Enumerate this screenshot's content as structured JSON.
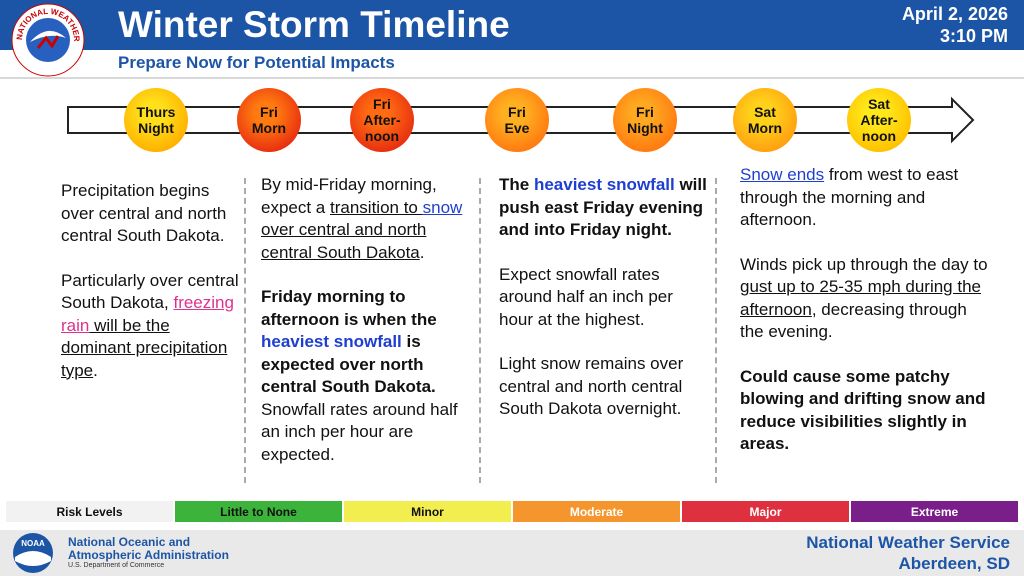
{
  "header": {
    "logo_text": "NATIONAL WEATHER SERVICE",
    "title": "Winter Storm Timeline",
    "subtitle": "Prepare Now for Potential Impacts",
    "date": "April 2, 2026",
    "time": "3:10 PM"
  },
  "timeline": {
    "periods": [
      {
        "lines": [
          "Thurs",
          "Night"
        ],
        "color": "#ffe01a",
        "edge": "#ffb000"
      },
      {
        "lines": [
          "Fri",
          "Morn"
        ],
        "color": "#ff7a10",
        "edge": "#e83010"
      },
      {
        "lines": [
          "Fri",
          "After-",
          "noon"
        ],
        "color": "#ff6a12",
        "edge": "#e83010"
      },
      {
        "lines": [
          "Fri",
          "Eve"
        ],
        "color": "#ffb020",
        "edge": "#ff7a10"
      },
      {
        "lines": [
          "Fri",
          "Night"
        ],
        "color": "#ffa820",
        "edge": "#ff7a10"
      },
      {
        "lines": [
          "Sat",
          "Morn"
        ],
        "color": "#ffd21a",
        "edge": "#ffa010"
      },
      {
        "lines": [
          "Sat",
          "After-",
          "noon"
        ],
        "color": "#ffe81a",
        "edge": "#ffc000"
      }
    ]
  },
  "columns": [
    {
      "paragraphs": [
        [
          {
            "text": "Precipitation begins over central and north central South Dakota.",
            "style": "plain"
          }
        ],
        [
          {
            "text": "Particularly over central South Dakota, ",
            "style": "plain"
          },
          {
            "text": "freezing rain",
            "style": "pink-link"
          },
          {
            "text": " will be the dominant precipitation type",
            "style": "underline"
          },
          {
            "text": ".",
            "style": "plain"
          }
        ]
      ]
    },
    {
      "paragraphs": [
        [
          {
            "text": "By mid-Friday morning, expect a ",
            "style": "plain"
          },
          {
            "text": "transition to ",
            "style": "underline"
          },
          {
            "text": "snow",
            "style": "blue-link"
          },
          {
            "text": " over central and north central South Dakota",
            "style": "underline"
          },
          {
            "text": ".",
            "style": "plain"
          }
        ],
        [
          {
            "text": "Friday morning to afternoon is when the ",
            "style": "bold"
          },
          {
            "text": "heaviest snowfall",
            "style": "bold-blue"
          },
          {
            "text": " is expected over north central South Dakota.",
            "style": "bold"
          },
          {
            "text": " Snowfall rates around half an inch per hour are expected.",
            "style": "plain"
          }
        ]
      ]
    },
    {
      "paragraphs": [
        [
          {
            "text": "The ",
            "style": "bold"
          },
          {
            "text": "heaviest snowfall",
            "style": "bold-blue"
          },
          {
            "text": " will push east Friday evening and into Friday night.",
            "style": "bold"
          }
        ],
        [
          {
            "text": "Expect snowfall rates around half an inch per hour at the highest.",
            "style": "plain"
          }
        ],
        [
          {
            "text": "Light snow remains over central and north central South Dakota overnight.",
            "style": "plain"
          }
        ]
      ]
    },
    {
      "paragraphs": [
        [
          {
            "text": "Snow ends",
            "style": "blue-link"
          },
          {
            "text": " from west to east through the morning and afternoon.",
            "style": "plain"
          }
        ],
        [
          {
            "text": "Winds pick up through the day to",
            "style": "plain"
          },
          {
            "text": " gust up to 25-35 mph during the afternoon",
            "style": "underline"
          },
          {
            "text": ", decreasing through the evening.",
            "style": "plain"
          }
        ],
        [
          {
            "text": "Could cause some patchy blowing and drifting snow and reduce visibilities slightly in areas.",
            "style": "bold"
          }
        ]
      ]
    }
  ],
  "risk_bar": {
    "label": "Risk Levels",
    "levels": [
      {
        "name": "Little to None",
        "color": "#3cb43c",
        "text_color": "#111"
      },
      {
        "name": "Minor",
        "color": "#f2ee50",
        "text_color": "#111"
      },
      {
        "name": "Moderate",
        "color": "#f5952e",
        "text_color": "#fff"
      },
      {
        "name": "Major",
        "color": "#df3040",
        "text_color": "#fff"
      },
      {
        "name": "Extreme",
        "color": "#7a1f8a",
        "text_color": "#fff"
      }
    ]
  },
  "footer": {
    "noaa_logo": "NOAA",
    "agency_lines": [
      "National Oceanic and",
      "Atmospheric Administration"
    ],
    "department": "U.S. Department of Commerce",
    "office_lines": [
      "National Weather Service",
      "Aberdeen, SD"
    ]
  }
}
